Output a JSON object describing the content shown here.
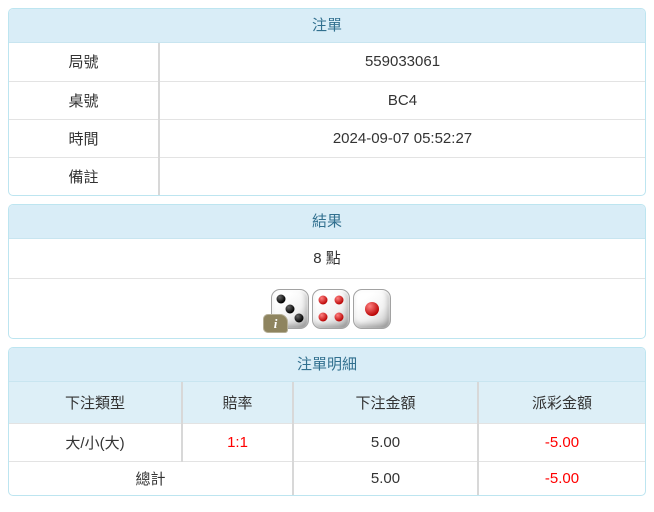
{
  "bet_slip": {
    "title": "注單",
    "rows": [
      {
        "label": "局號",
        "value": "559033061"
      },
      {
        "label": "桌號",
        "value": "BC4"
      },
      {
        "label": "時間",
        "value": "2024-09-07 05:52:27"
      },
      {
        "label": "備註",
        "value": ""
      }
    ]
  },
  "result": {
    "title": "結果",
    "points": "8 點",
    "dice": [
      {
        "value": 3,
        "color": "black"
      },
      {
        "value": 4,
        "color": "red"
      },
      {
        "value": 1,
        "color": "red"
      }
    ],
    "info_badge": "i"
  },
  "bet_details": {
    "title": "注單明細",
    "columns": [
      "下注類型",
      "賠率",
      "下注金額",
      "派彩金額"
    ],
    "rows": [
      {
        "type": "大/小(大)",
        "odds": "1:1",
        "bet_amount": "5.00",
        "payout": "-5.00"
      }
    ],
    "total": {
      "label": "總計",
      "bet_amount": "5.00",
      "payout": "-5.00"
    }
  },
  "colors": {
    "header_bg": "#d9edf7",
    "header_text": "#31708f",
    "panel_border": "#bde5f0",
    "subheader_bg": "#ddeff7",
    "negative": "#ff0000"
  }
}
